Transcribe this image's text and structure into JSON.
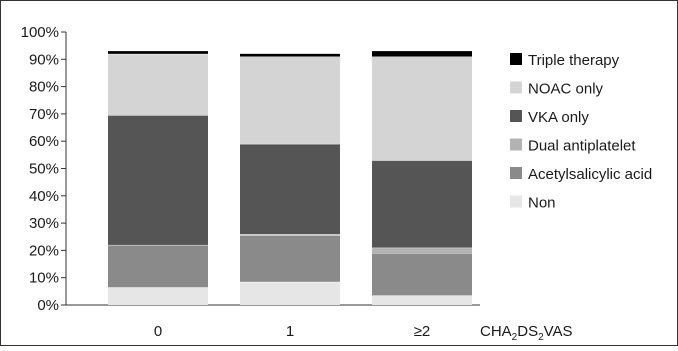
{
  "chart_data": {
    "type": "bar",
    "stacked": true,
    "categories": [
      "0",
      "1",
      "≥2"
    ],
    "x_axis_label": {
      "main": "CHA",
      "sub1": "2",
      "mid": "DS",
      "sub2": "2",
      "tail": "VAS"
    },
    "y_ticks": [
      "0%",
      "10%",
      "20%",
      "30%",
      "40%",
      "50%",
      "60%",
      "70%",
      "80%",
      "90%",
      "100%"
    ],
    "ylim": [
      0,
      100
    ],
    "grid": false,
    "legend_position": "right",
    "series": [
      {
        "name": "Non",
        "color": "#e6e6e6",
        "values": [
          6.5,
          8.5,
          3.5
        ]
      },
      {
        "name": "Acetylsalicylic acid",
        "color": "#8a8a8a",
        "values": [
          15.5,
          17,
          15.5
        ]
      },
      {
        "name": "Dual antiplatelet",
        "color": "#b3b3b3",
        "values": [
          0,
          0.5,
          2
        ]
      },
      {
        "name": "VKA only",
        "color": "#555555",
        "values": [
          47.5,
          33,
          32
        ]
      },
      {
        "name": "NOAC only",
        "color": "#d4d4d4",
        "values": [
          22.5,
          32,
          38
        ]
      },
      {
        "name": "Triple therapy",
        "color": "#000000",
        "values": [
          1,
          1,
          2
        ]
      }
    ]
  }
}
